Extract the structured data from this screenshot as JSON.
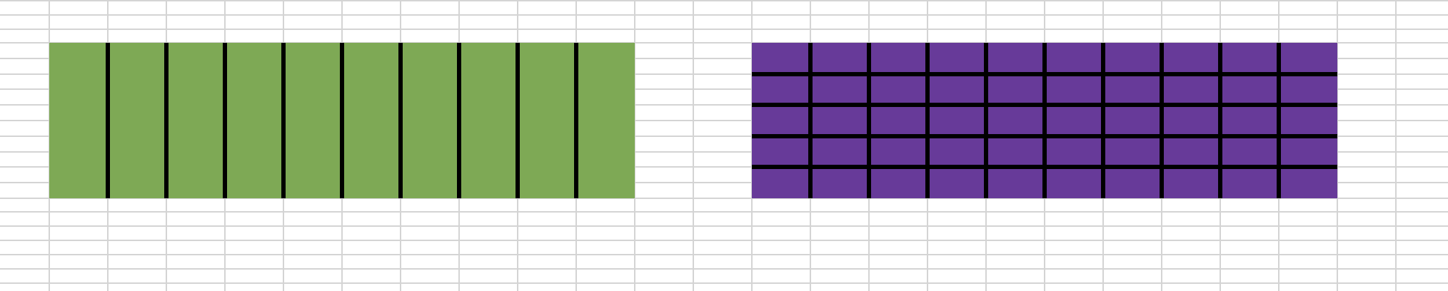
{
  "sheet": {
    "gridline_color": "#d4d4d4",
    "border_color": "#000000",
    "blocks": [
      {
        "name": "green-block",
        "fill": "#7ea955",
        "columns": 10,
        "rows": 10,
        "inner_borders": "vertical"
      },
      {
        "name": "purple-block",
        "fill": "#673a99",
        "columns": 10,
        "rows": 10,
        "inner_borders": "vertical-and-every-second-row"
      }
    ]
  }
}
